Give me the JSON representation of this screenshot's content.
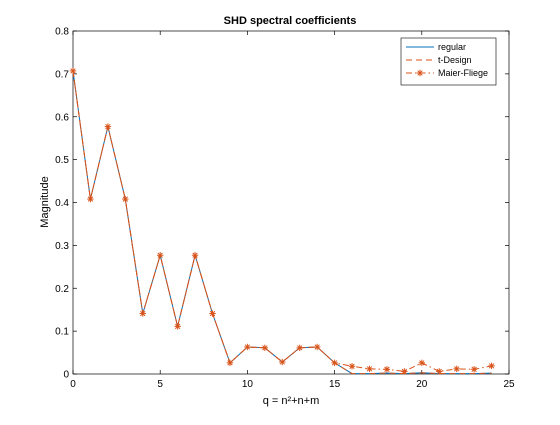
{
  "chart_data": {
    "type": "line",
    "title": "SHD spectral coefficients",
    "xlabel": "q = n²+n+m",
    "ylabel": "Magnitude",
    "xlim": [
      0,
      25
    ],
    "ylim": [
      0,
      0.8
    ],
    "xticks": [
      0,
      5,
      10,
      15,
      20,
      25
    ],
    "yticks": [
      0,
      0.1,
      0.2,
      0.3,
      0.4,
      0.5,
      0.6,
      0.7,
      0.8
    ],
    "xtick_labels": [
      "0",
      "5",
      "10",
      "15",
      "20",
      "25"
    ],
    "ytick_labels": [
      "0",
      "0.1",
      "0.2",
      "0.3",
      "0.4",
      "0.5",
      "0.6",
      "0.7",
      "0.8"
    ],
    "grid": false,
    "legend_position": "top-right",
    "x": [
      0,
      1,
      2,
      3,
      4,
      5,
      6,
      7,
      8,
      9,
      10,
      11,
      12,
      13,
      14,
      15,
      16,
      17,
      18,
      19,
      20,
      21,
      22,
      23,
      24
    ],
    "series": [
      {
        "name": "regular",
        "color": "#0072bd",
        "line_style": "solid",
        "marker": "none",
        "values": [
          0.707,
          0.408,
          0.577,
          0.408,
          0.141,
          0.277,
          0.111,
          0.277,
          0.141,
          0.026,
          0.063,
          0.061,
          0.028,
          0.061,
          0.063,
          0.026,
          0.001,
          0.001,
          0.002,
          0.001,
          0.003,
          0.001,
          0.001,
          0.001,
          0.002
        ]
      },
      {
        "name": "t-Design",
        "color": "#d95319",
        "line_style": "dashed",
        "marker": "none",
        "values": [
          0.707,
          0.408,
          0.577,
          0.408,
          0.141,
          0.277,
          0.111,
          0.277,
          0.141,
          0.026,
          0.063,
          0.061,
          0.028,
          0.061,
          0.063,
          0.026,
          0.001,
          0.001,
          0.002,
          0.001,
          0.003,
          0.001,
          0.001,
          0.001,
          0.002
        ]
      },
      {
        "name": "Maier-Fliege",
        "color": "#d95319",
        "line_style": "dashdot",
        "marker": "asterisk",
        "values": [
          0.707,
          0.408,
          0.577,
          0.408,
          0.141,
          0.277,
          0.111,
          0.277,
          0.141,
          0.026,
          0.063,
          0.061,
          0.028,
          0.061,
          0.063,
          0.026,
          0.018,
          0.012,
          0.011,
          0.006,
          0.026,
          0.006,
          0.012,
          0.011,
          0.019
        ]
      }
    ]
  }
}
